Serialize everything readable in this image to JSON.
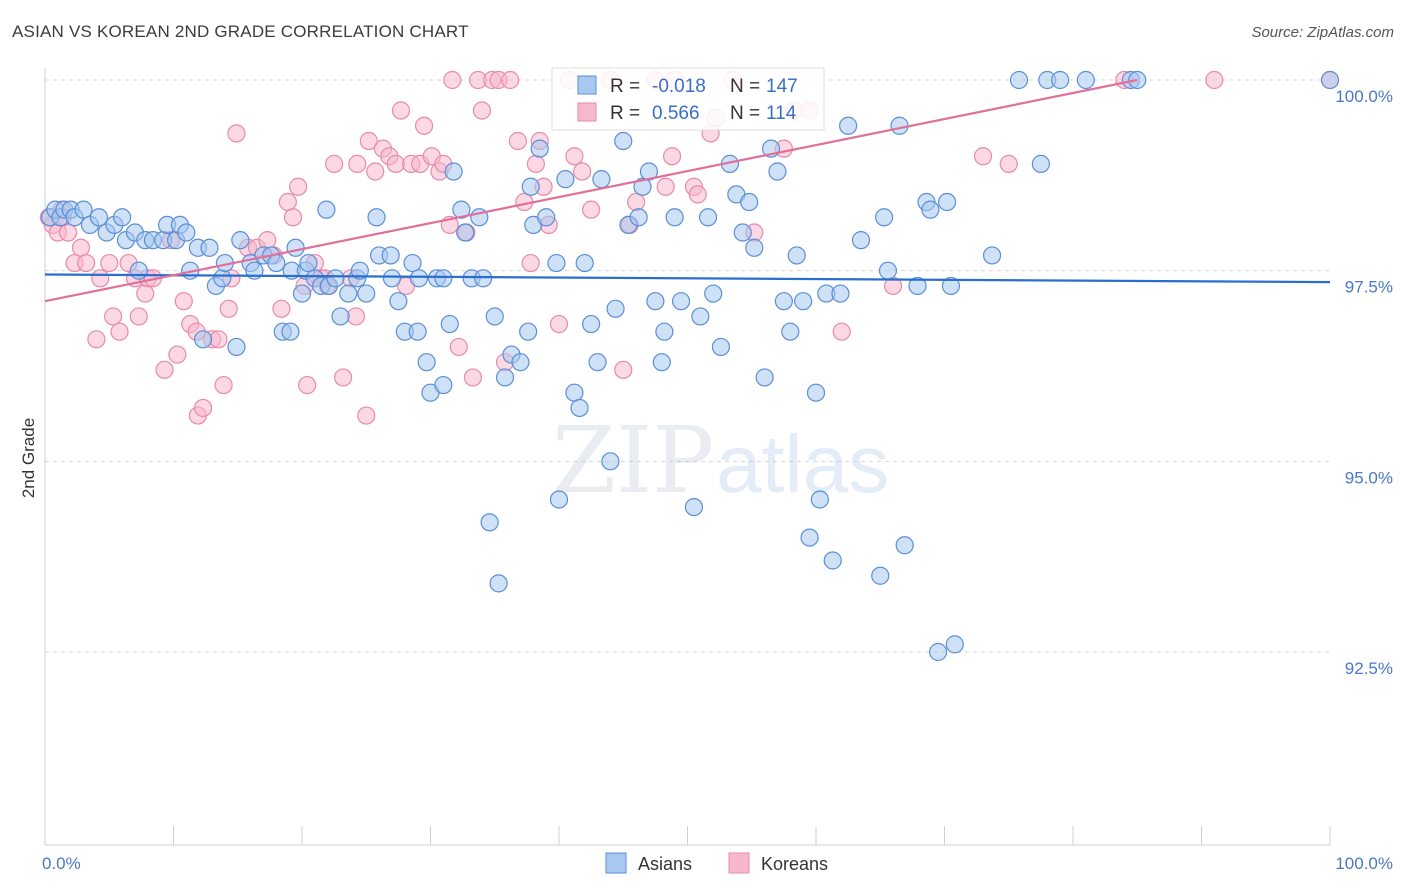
{
  "header": {
    "title": "ASIAN VS KOREAN 2ND GRADE CORRELATION CHART",
    "source": "Source: ZipAtlas.com"
  },
  "watermark": {
    "zip": "ZIP",
    "atlas": "atlas"
  },
  "colors": {
    "asians_fill": "#a8c8f0",
    "asians_stroke": "#5a8fd6",
    "asians_line": "#2a6fce",
    "koreans_fill": "#f7b8cc",
    "koreans_stroke": "#e88aaa",
    "koreans_line": "#e0709a",
    "grid": "#d8d8d8",
    "tick_text": "#4a78c8"
  },
  "legend": {
    "rows": [
      {
        "r_label": "R = ",
        "r_value": "-0.018",
        "n_label": "N = ",
        "n_value": "147"
      },
      {
        "r_label": "R = ",
        "r_value": "0.566",
        "n_label": "N = ",
        "n_value": "114"
      }
    ],
    "bottom": [
      "Asians",
      "Koreans"
    ]
  },
  "chart_data": {
    "type": "scatter",
    "title": "ASIAN VS KOREAN 2ND GRADE CORRELATION CHART",
    "xlabel": "",
    "ylabel": "2nd Grade",
    "xlim": [
      0,
      100
    ],
    "ylim": [
      90.2,
      100.6
    ],
    "x_tick_labels": [
      "0.0%",
      "100.0%"
    ],
    "y_ticks": [
      92.5,
      95.0,
      97.5,
      100.0
    ],
    "y_tick_labels": [
      "92.5%",
      "95.0%",
      "97.5%",
      "100.0%"
    ],
    "grid": true,
    "legend_placement": "top-center",
    "series": [
      {
        "name": "Asians",
        "r": -0.018,
        "n": 147,
        "trend": {
          "x": [
            0,
            100
          ],
          "y": [
            97.45,
            97.35
          ]
        },
        "points": [
          [
            0.4,
            98.2
          ],
          [
            0.8,
            98.3
          ],
          [
            1.2,
            98.2
          ],
          [
            1.5,
            98.3
          ],
          [
            2.0,
            98.3
          ],
          [
            2.3,
            98.2
          ],
          [
            3.0,
            98.3
          ],
          [
            3.5,
            98.1
          ],
          [
            4.2,
            98.2
          ],
          [
            4.8,
            98.0
          ],
          [
            5.4,
            98.1
          ],
          [
            6.0,
            98.2
          ],
          [
            6.3,
            97.9
          ],
          [
            7.0,
            98.0
          ],
          [
            7.3,
            97.5
          ],
          [
            7.8,
            97.9
          ],
          [
            8.4,
            97.9
          ],
          [
            9.2,
            97.9
          ],
          [
            9.5,
            98.1
          ],
          [
            10.2,
            97.9
          ],
          [
            10.5,
            98.1
          ],
          [
            11.0,
            98.0
          ],
          [
            11.3,
            97.5
          ],
          [
            11.9,
            97.8
          ],
          [
            12.3,
            96.6
          ],
          [
            12.8,
            97.8
          ],
          [
            13.3,
            97.3
          ],
          [
            13.8,
            97.4
          ],
          [
            14.0,
            97.6
          ],
          [
            14.9,
            96.5
          ],
          [
            15.2,
            97.9
          ],
          [
            16.0,
            97.6
          ],
          [
            16.3,
            97.5
          ],
          [
            17.0,
            97.7
          ],
          [
            17.6,
            97.7
          ],
          [
            18.0,
            97.6
          ],
          [
            18.5,
            96.7
          ],
          [
            19.1,
            96.7
          ],
          [
            19.2,
            97.5
          ],
          [
            19.5,
            97.8
          ],
          [
            20.0,
            97.2
          ],
          [
            20.3,
            97.5
          ],
          [
            20.5,
            97.6
          ],
          [
            21.0,
            97.4
          ],
          [
            21.5,
            97.3
          ],
          [
            21.9,
            98.3
          ],
          [
            22.1,
            97.3
          ],
          [
            22.6,
            97.4
          ],
          [
            23.0,
            96.9
          ],
          [
            23.6,
            97.2
          ],
          [
            24.3,
            97.4
          ],
          [
            24.5,
            97.5
          ],
          [
            25.0,
            97.2
          ],
          [
            25.8,
            98.2
          ],
          [
            26.0,
            97.7
          ],
          [
            26.9,
            97.7
          ],
          [
            27.0,
            97.4
          ],
          [
            27.5,
            97.1
          ],
          [
            28.0,
            96.7
          ],
          [
            28.6,
            97.6
          ],
          [
            29.0,
            96.7
          ],
          [
            29.1,
            97.4
          ],
          [
            29.7,
            96.3
          ],
          [
            30.0,
            95.9
          ],
          [
            30.5,
            97.4
          ],
          [
            31.0,
            97.4
          ],
          [
            31.0,
            96.0
          ],
          [
            31.5,
            96.8
          ],
          [
            31.8,
            98.8
          ],
          [
            32.4,
            98.3
          ],
          [
            32.7,
            98.0
          ],
          [
            33.2,
            97.4
          ],
          [
            33.8,
            98.2
          ],
          [
            34.1,
            97.4
          ],
          [
            34.6,
            94.2
          ],
          [
            35.0,
            96.9
          ],
          [
            35.3,
            93.4
          ],
          [
            35.8,
            96.1
          ],
          [
            36.3,
            96.4
          ],
          [
            37.0,
            96.3
          ],
          [
            37.6,
            96.7
          ],
          [
            37.8,
            98.6
          ],
          [
            38.0,
            98.1
          ],
          [
            38.5,
            99.1
          ],
          [
            39.0,
            98.2
          ],
          [
            39.8,
            97.6
          ],
          [
            40.0,
            94.5
          ],
          [
            40.5,
            98.7
          ],
          [
            41.2,
            95.9
          ],
          [
            41.6,
            95.7
          ],
          [
            42.0,
            97.6
          ],
          [
            42.5,
            96.8
          ],
          [
            43.0,
            96.3
          ],
          [
            43.3,
            98.7
          ],
          [
            44.0,
            95.0
          ],
          [
            44.4,
            97.0
          ],
          [
            45.0,
            99.2
          ],
          [
            45.4,
            98.1
          ],
          [
            46.2,
            98.2
          ],
          [
            46.5,
            98.6
          ],
          [
            47.0,
            98.8
          ],
          [
            47.5,
            97.1
          ],
          [
            48.2,
            96.7
          ],
          [
            48.0,
            96.3
          ],
          [
            49.0,
            98.2
          ],
          [
            49.5,
            97.1
          ],
          [
            50.5,
            94.4
          ],
          [
            51.0,
            96.9
          ],
          [
            51.6,
            98.2
          ],
          [
            52.0,
            97.2
          ],
          [
            52.6,
            96.5
          ],
          [
            53.3,
            98.9
          ],
          [
            53.8,
            98.5
          ],
          [
            54.3,
            98.0
          ],
          [
            54.8,
            98.4
          ],
          [
            55.2,
            97.8
          ],
          [
            56.0,
            96.1
          ],
          [
            56.5,
            99.1
          ],
          [
            57.0,
            98.8
          ],
          [
            57.5,
            97.1
          ],
          [
            58.0,
            96.7
          ],
          [
            58.5,
            97.7
          ],
          [
            59.0,
            97.1
          ],
          [
            59.5,
            94.0
          ],
          [
            60.0,
            95.9
          ],
          [
            60.3,
            94.5
          ],
          [
            60.8,
            97.2
          ],
          [
            61.3,
            93.7
          ],
          [
            61.9,
            97.2
          ],
          [
            62.5,
            99.4
          ],
          [
            63.5,
            97.9
          ],
          [
            65.0,
            93.5
          ],
          [
            65.3,
            98.2
          ],
          [
            65.6,
            97.5
          ],
          [
            66.5,
            99.4
          ],
          [
            66.9,
            93.9
          ],
          [
            67.9,
            97.3
          ],
          [
            68.6,
            98.4
          ],
          [
            68.9,
            98.3
          ],
          [
            69.5,
            92.5
          ],
          [
            70.2,
            98.4
          ],
          [
            70.5,
            97.3
          ],
          [
            70.8,
            92.6
          ],
          [
            73.7,
            97.7
          ],
          [
            75.8,
            100.0
          ],
          [
            78.0,
            100.0
          ],
          [
            79.0,
            100.0
          ],
          [
            81.0,
            100.0
          ],
          [
            84.5,
            100.0
          ],
          [
            85.0,
            100.0
          ],
          [
            77.5,
            98.9
          ],
          [
            100.0,
            100.0
          ]
        ]
      },
      {
        "name": "Koreans",
        "r": 0.566,
        "n": 114,
        "trend": {
          "x": [
            0,
            85
          ],
          "y": [
            97.1,
            100.0
          ]
        },
        "points": [
          [
            0.3,
            98.2
          ],
          [
            0.6,
            98.1
          ],
          [
            1.0,
            98.0
          ],
          [
            1.3,
            98.3
          ],
          [
            1.8,
            98.0
          ],
          [
            2.3,
            97.6
          ],
          [
            2.8,
            97.8
          ],
          [
            3.2,
            97.6
          ],
          [
            4.0,
            96.6
          ],
          [
            4.3,
            97.4
          ],
          [
            5.0,
            97.6
          ],
          [
            5.3,
            96.9
          ],
          [
            5.8,
            96.7
          ],
          [
            6.5,
            97.6
          ],
          [
            7.0,
            97.4
          ],
          [
            7.3,
            96.9
          ],
          [
            7.8,
            97.2
          ],
          [
            8.0,
            97.4
          ],
          [
            8.4,
            97.4
          ],
          [
            9.3,
            96.2
          ],
          [
            9.8,
            97.9
          ],
          [
            10.3,
            96.4
          ],
          [
            10.8,
            97.1
          ],
          [
            11.3,
            96.8
          ],
          [
            11.8,
            96.7
          ],
          [
            11.9,
            95.6
          ],
          [
            12.3,
            95.7
          ],
          [
            13.0,
            96.6
          ],
          [
            13.5,
            96.6
          ],
          [
            13.9,
            96.0
          ],
          [
            14.3,
            97.0
          ],
          [
            14.5,
            97.4
          ],
          [
            14.9,
            99.3
          ],
          [
            15.8,
            97.8
          ],
          [
            16.5,
            97.8
          ],
          [
            17.3,
            97.9
          ],
          [
            17.8,
            97.7
          ],
          [
            18.4,
            97.0
          ],
          [
            18.9,
            98.4
          ],
          [
            19.3,
            98.2
          ],
          [
            19.7,
            98.6
          ],
          [
            20.2,
            97.3
          ],
          [
            20.4,
            96.0
          ],
          [
            21.0,
            97.6
          ],
          [
            21.5,
            97.4
          ],
          [
            21.8,
            97.4
          ],
          [
            22.0,
            97.3
          ],
          [
            22.5,
            98.9
          ],
          [
            23.2,
            96.1
          ],
          [
            23.8,
            97.4
          ],
          [
            24.2,
            96.9
          ],
          [
            24.3,
            98.9
          ],
          [
            25.0,
            95.6
          ],
          [
            25.2,
            99.2
          ],
          [
            25.7,
            98.8
          ],
          [
            26.3,
            99.1
          ],
          [
            26.8,
            99.0
          ],
          [
            27.3,
            98.9
          ],
          [
            27.7,
            99.6
          ],
          [
            28.1,
            97.3
          ],
          [
            28.5,
            98.9
          ],
          [
            29.2,
            98.9
          ],
          [
            29.5,
            99.4
          ],
          [
            30.1,
            99.0
          ],
          [
            30.7,
            98.8
          ],
          [
            31.0,
            98.9
          ],
          [
            31.5,
            98.1
          ],
          [
            31.7,
            100.0
          ],
          [
            32.2,
            96.5
          ],
          [
            32.8,
            98.0
          ],
          [
            33.3,
            96.1
          ],
          [
            33.7,
            100.0
          ],
          [
            34.0,
            99.6
          ],
          [
            34.8,
            100.0
          ],
          [
            35.3,
            100.0
          ],
          [
            35.8,
            96.3
          ],
          [
            36.2,
            100.0
          ],
          [
            36.8,
            99.2
          ],
          [
            37.3,
            98.4
          ],
          [
            37.8,
            97.6
          ],
          [
            38.2,
            98.9
          ],
          [
            38.5,
            99.2
          ],
          [
            38.8,
            98.6
          ],
          [
            39.2,
            98.1
          ],
          [
            40.0,
            96.8
          ],
          [
            40.8,
            100.0
          ],
          [
            41.2,
            99.0
          ],
          [
            41.8,
            98.8
          ],
          [
            42.5,
            98.3
          ],
          [
            44.0,
            100.0
          ],
          [
            45.0,
            96.2
          ],
          [
            45.5,
            98.1
          ],
          [
            46.0,
            98.4
          ],
          [
            47.5,
            100.0
          ],
          [
            48.3,
            98.6
          ],
          [
            48.8,
            99.0
          ],
          [
            49.0,
            100.0
          ],
          [
            50.5,
            98.6
          ],
          [
            50.8,
            98.5
          ],
          [
            51.8,
            99.3
          ],
          [
            52.2,
            99.5
          ],
          [
            53.5,
            100.0
          ],
          [
            55.2,
            98.0
          ],
          [
            57.5,
            99.1
          ],
          [
            58.3,
            99.6
          ],
          [
            59.5,
            99.6
          ],
          [
            62.0,
            96.7
          ],
          [
            66.0,
            97.3
          ],
          [
            73.0,
            99.0
          ],
          [
            75.0,
            98.9
          ],
          [
            84.0,
            100.0
          ],
          [
            91.0,
            100.0
          ],
          [
            100.0,
            100.0
          ],
          [
            1.4,
            98.2
          ]
        ]
      }
    ]
  }
}
